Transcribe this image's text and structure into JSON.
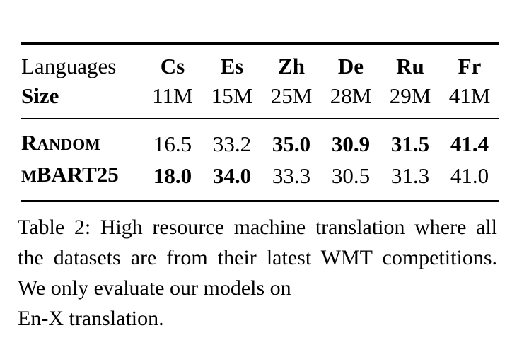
{
  "table": {
    "header_row": {
      "label": "Languages",
      "cells": [
        "Cs",
        "Es",
        "Zh",
        "De",
        "Ru",
        "Fr"
      ]
    },
    "size_row": {
      "label": "Size",
      "cells": [
        "11M",
        "15M",
        "25M",
        "28M",
        "29M",
        "41M"
      ]
    },
    "random_row": {
      "label_first": "R",
      "label_rest": "ANDOM",
      "cells": [
        "16.5",
        "33.2",
        "35.0",
        "30.9",
        "31.5",
        "41.4"
      ]
    },
    "mbart_row": {
      "label_prefix": "M",
      "label_main": "BART25",
      "cells": [
        "18.0",
        "34.0",
        "33.3",
        "30.5",
        "31.3",
        "41.0"
      ]
    }
  },
  "caption": {
    "text": "Table 2: High resource machine translation where all the datasets are from their latest WMT competitions. We only evaluate our models on",
    "last_line": "En-X translation."
  }
}
